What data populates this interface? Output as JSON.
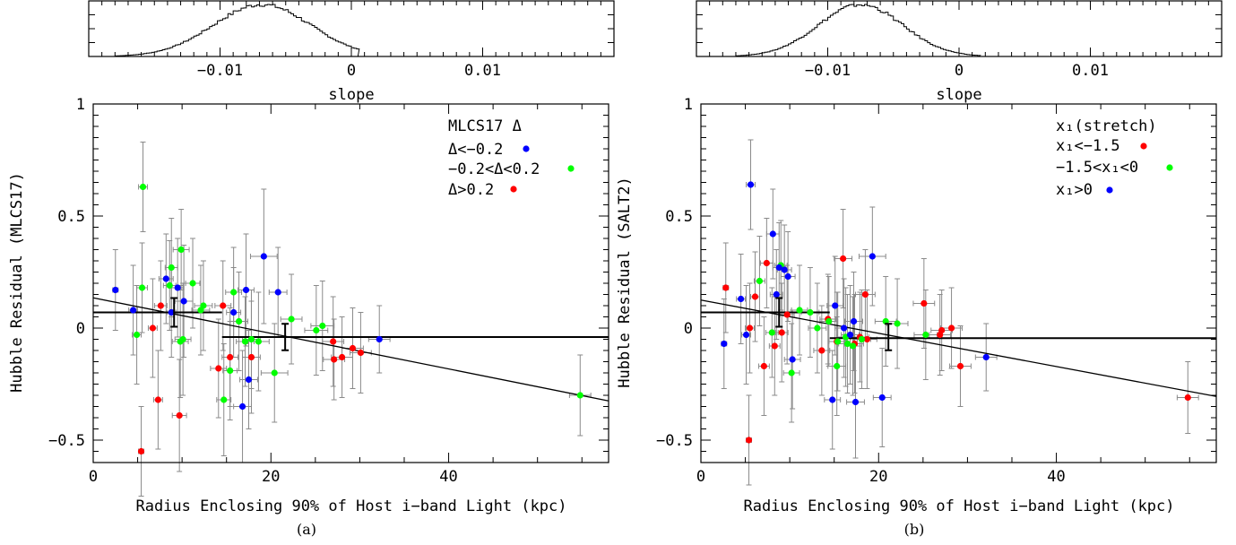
{
  "chart_data": [
    {
      "type": "scatter",
      "panel_caption": "(a)",
      "xlabel": "Radius Enclosing 90% of Host i−band Light (kpc)",
      "ylabel": "Hubble Residual (MLCS17)",
      "xlim": [
        0,
        58
      ],
      "ylim": [
        -0.6,
        1
      ],
      "xticks": [
        {
          "v": 0,
          "label": "0"
        },
        {
          "v": 20,
          "label": "20"
        },
        {
          "v": 40,
          "label": "40"
        }
      ],
      "yticks": [
        {
          "v": -0.5,
          "label": "−0.5"
        },
        {
          "v": 0,
          "label": "0"
        },
        {
          "v": 0.5,
          "label": "0.5"
        },
        {
          "v": 1,
          "label": "1"
        }
      ],
      "legend_placement": "top-right",
      "legend_title": "MLCS17 Δ",
      "series": [
        {
          "name": "Δ<−0.2",
          "color": "#0000ff",
          "points": [
            [
              2.5,
              0.17
            ],
            [
              4.5,
              0.08
            ],
            [
              8.2,
              0.22
            ],
            [
              9.5,
              0.18
            ],
            [
              10.2,
              0.12
            ],
            [
              15.8,
              0.07
            ],
            [
              16.8,
              -0.35
            ],
            [
              17.2,
              0.17
            ],
            [
              17.5,
              -0.23
            ],
            [
              19.2,
              0.32
            ],
            [
              20.8,
              0.16
            ],
            [
              32.2,
              -0.05
            ],
            [
              8.8,
              0.07
            ]
          ],
          "xerr": [
            0.3,
            0.5,
            0.8,
            0.7,
            1.0,
            0.8,
            1.0,
            0.9,
            1.0,
            1.5,
            1.0,
            1.2,
            0.5
          ],
          "yerr": [
            0.18,
            0.2,
            0.2,
            0.22,
            0.25,
            0.2,
            0.25,
            0.25,
            0.22,
            0.3,
            0.2,
            0.15,
            0.2
          ]
        },
        {
          "name": "−0.2<Δ<0.2",
          "color": "#00ff00",
          "points": [
            [
              5.6,
              0.63
            ],
            [
              5.5,
              0.18
            ],
            [
              4.9,
              -0.03
            ],
            [
              8.8,
              0.27
            ],
            [
              8.6,
              0.19
            ],
            [
              9.9,
              0.35
            ],
            [
              10.1,
              -0.05
            ],
            [
              9.8,
              -0.06
            ],
            [
              11.2,
              0.2
            ],
            [
              12.4,
              0.1
            ],
            [
              12.1,
              0.08
            ],
            [
              14.7,
              -0.32
            ],
            [
              15.4,
              -0.19
            ],
            [
              15.8,
              0.16
            ],
            [
              16.4,
              0.03
            ],
            [
              17.1,
              -0.06
            ],
            [
              17.8,
              -0.05
            ],
            [
              18.6,
              -0.06
            ],
            [
              20.4,
              -0.2
            ],
            [
              22.3,
              0.04
            ],
            [
              25.1,
              -0.01
            ],
            [
              25.8,
              0.01
            ],
            [
              54.8,
              -0.3
            ]
          ],
          "xerr": [
            0.5,
            0.6,
            0.5,
            0.7,
            0.7,
            0.9,
            0.9,
            0.9,
            0.8,
            1.0,
            1.0,
            0.8,
            0.8,
            0.9,
            1.0,
            1.0,
            1.0,
            1.2,
            1.5,
            1.2,
            1.3,
            1.3,
            1.2
          ],
          "yerr": [
            0.2,
            0.2,
            0.22,
            0.22,
            0.2,
            0.18,
            0.25,
            0.25,
            0.2,
            0.2,
            0.2,
            0.25,
            0.22,
            0.2,
            0.22,
            0.2,
            0.22,
            0.22,
            0.22,
            0.2,
            0.2,
            0.2,
            0.18
          ]
        },
        {
          "name": "Δ>0.2",
          "color": "#ff0000",
          "points": [
            [
              5.4,
              -0.55
            ],
            [
              6.7,
              0.0
            ],
            [
              7.3,
              -0.32
            ],
            [
              7.6,
              0.1
            ],
            [
              9.7,
              -0.39
            ],
            [
              14.1,
              -0.18
            ],
            [
              14.6,
              0.1
            ],
            [
              15.4,
              -0.13
            ],
            [
              17.8,
              -0.13
            ],
            [
              27.1,
              -0.14
            ],
            [
              27.0,
              -0.06
            ],
            [
              28.0,
              -0.13
            ],
            [
              29.2,
              -0.09
            ],
            [
              30.1,
              -0.11
            ]
          ],
          "xerr": [
            0.3,
            0.5,
            0.5,
            0.7,
            0.8,
            0.9,
            0.9,
            0.9,
            1.0,
            1.2,
            1.2,
            1.2,
            1.2,
            1.2
          ],
          "yerr": [
            0.2,
            0.22,
            0.22,
            0.2,
            0.25,
            0.22,
            0.2,
            0.22,
            0.25,
            0.18,
            0.2,
            0.18,
            0.18,
            0.18
          ]
        }
      ],
      "binned": [
        {
          "x": 9.1,
          "y": 0.07,
          "xerr": 0.0,
          "yerr": 0.04
        },
        {
          "x": 21.6,
          "y": -0.04,
          "xerr": 0.0,
          "yerr": 0.035
        }
      ],
      "steps": [
        {
          "x0": 0,
          "x1": 14.5,
          "y": 0.07
        },
        {
          "x0": 14.5,
          "x1": 58,
          "y": -0.04
        }
      ],
      "fit_line": {
        "x0": 0,
        "y0": 0.135,
        "x1": 58,
        "y1": -0.325
      },
      "inset": {
        "xlabel": "slope",
        "xlim": [
          -0.02,
          0.02
        ],
        "xticks": [
          {
            "v": -0.01,
            "label": "−0.01"
          },
          {
            "v": 0,
            "label": "0"
          },
          {
            "v": 0.01,
            "label": "0.01"
          }
        ],
        "mean": -0.0068,
        "sigma": 0.0037,
        "lo": -0.018,
        "hi": 0.0005
      }
    },
    {
      "type": "scatter",
      "panel_caption": "(b)",
      "xlabel": "Radius Enclosing 90% of Host i−band Light (kpc)",
      "ylabel": "Hubble Residual (SALT2)",
      "xlim": [
        0,
        58
      ],
      "ylim": [
        -0.6,
        1
      ],
      "xticks": [
        {
          "v": 0,
          "label": "0"
        },
        {
          "v": 20,
          "label": "20"
        },
        {
          "v": 40,
          "label": "40"
        }
      ],
      "yticks": [
        {
          "v": -0.5,
          "label": "−0.5"
        },
        {
          "v": 0,
          "label": "0"
        },
        {
          "v": 0.5,
          "label": "0.5"
        },
        {
          "v": 1,
          "label": "1"
        }
      ],
      "legend_placement": "top-right",
      "legend_title": "x₁(stretch)",
      "series": [
        {
          "name": "x₁<−1.5",
          "color": "#ff0000",
          "points": [
            [
              2.8,
              0.18
            ],
            [
              5.5,
              0.0
            ],
            [
              6.1,
              0.14
            ],
            [
              5.4,
              -0.5
            ],
            [
              7.1,
              -0.17
            ],
            [
              7.4,
              0.29
            ],
            [
              8.3,
              -0.08
            ],
            [
              9.1,
              -0.02
            ],
            [
              9.7,
              0.06
            ],
            [
              13.6,
              -0.1
            ],
            [
              14.3,
              0.04
            ],
            [
              15.3,
              -0.06
            ],
            [
              16.0,
              0.31
            ],
            [
              17.3,
              -0.07
            ],
            [
              17.9,
              -0.04
            ],
            [
              18.5,
              0.15
            ],
            [
              18.7,
              -0.05
            ],
            [
              25.1,
              0.11
            ],
            [
              26.9,
              -0.03
            ],
            [
              27.1,
              -0.01
            ],
            [
              28.2,
              0.0
            ],
            [
              29.2,
              -0.17
            ],
            [
              54.8,
              -0.31
            ]
          ],
          "xerr": [
            0.3,
            0.5,
            0.5,
            0.3,
            0.6,
            0.7,
            0.6,
            0.7,
            0.8,
            0.9,
            0.9,
            0.9,
            1.0,
            1.0,
            1.0,
            1.1,
            1.1,
            1.2,
            1.2,
            1.2,
            1.2,
            1.2,
            1.2
          ],
          "yerr": [
            0.2,
            0.2,
            0.2,
            0.2,
            0.22,
            0.2,
            0.22,
            0.22,
            0.22,
            0.2,
            0.2,
            0.22,
            0.22,
            0.22,
            0.2,
            0.2,
            0.22,
            0.2,
            0.18,
            0.18,
            0.18,
            0.18,
            0.16
          ]
        },
        {
          "name": "−1.5<x₁<0",
          "color": "#00ff00",
          "points": [
            [
              6.6,
              0.21
            ],
            [
              8.0,
              -0.02
            ],
            [
              9.0,
              0.28
            ],
            [
              10.2,
              -0.2
            ],
            [
              11.1,
              0.08
            ],
            [
              12.3,
              0.07
            ],
            [
              13.1,
              0.0
            ],
            [
              14.4,
              0.03
            ],
            [
              15.3,
              -0.17
            ],
            [
              15.4,
              -0.06
            ],
            [
              16.3,
              -0.04
            ],
            [
              16.5,
              -0.07
            ],
            [
              17.1,
              -0.08
            ],
            [
              18.1,
              -0.05
            ],
            [
              20.8,
              0.03
            ],
            [
              22.1,
              0.02
            ],
            [
              25.3,
              -0.03
            ]
          ],
          "xerr": [
            0.6,
            0.7,
            0.7,
            0.9,
            0.9,
            1.0,
            1.0,
            1.0,
            1.0,
            1.0,
            1.0,
            1.0,
            1.0,
            1.0,
            1.2,
            1.2,
            1.3
          ],
          "yerr": [
            0.2,
            0.2,
            0.2,
            0.22,
            0.2,
            0.2,
            0.2,
            0.2,
            0.22,
            0.22,
            0.22,
            0.22,
            0.22,
            0.22,
            0.2,
            0.2,
            0.2
          ]
        },
        {
          "name": "x₁>0",
          "color": "#0000ff",
          "points": [
            [
              2.6,
              -0.07
            ],
            [
              4.5,
              0.13
            ],
            [
              5.1,
              -0.03
            ],
            [
              5.6,
              0.64
            ],
            [
              8.1,
              0.42
            ],
            [
              8.5,
              0.15
            ],
            [
              8.8,
              0.27
            ],
            [
              9.4,
              0.26
            ],
            [
              9.8,
              0.23
            ],
            [
              10.3,
              -0.14
            ],
            [
              14.8,
              -0.32
            ],
            [
              15.1,
              0.1
            ],
            [
              16.1,
              0.0
            ],
            [
              16.8,
              -0.03
            ],
            [
              17.2,
              0.03
            ],
            [
              17.4,
              -0.33
            ],
            [
              19.3,
              0.32
            ],
            [
              20.4,
              -0.31
            ],
            [
              32.1,
              -0.13
            ]
          ],
          "xerr": [
            0.3,
            0.5,
            0.5,
            0.5,
            0.7,
            0.7,
            0.7,
            0.8,
            0.8,
            0.9,
            0.9,
            0.9,
            1.0,
            1.0,
            1.0,
            1.0,
            1.5,
            1.0,
            1.2
          ],
          "yerr": [
            0.2,
            0.2,
            0.22,
            0.2,
            0.2,
            0.2,
            0.2,
            0.2,
            0.2,
            0.22,
            0.22,
            0.22,
            0.22,
            0.22,
            0.22,
            0.25,
            0.22,
            0.22,
            0.15
          ]
        }
      ],
      "binned": [
        {
          "x": 8.8,
          "y": 0.07,
          "xerr": 0.0,
          "yerr": 0.04
        },
        {
          "x": 21.1,
          "y": -0.04,
          "xerr": 0.0,
          "yerr": 0.035
        }
      ],
      "steps": [
        {
          "x0": 0,
          "x1": 14.5,
          "y": 0.07
        },
        {
          "x0": 14.5,
          "x1": 58,
          "y": -0.045
        }
      ],
      "fit_line": {
        "x0": 0,
        "y0": 0.125,
        "x1": 58,
        "y1": -0.305
      },
      "inset": {
        "xlabel": "slope",
        "xlim": [
          -0.02,
          0.02
        ],
        "xticks": [
          {
            "v": -0.01,
            "label": "−0.01"
          },
          {
            "v": 0,
            "label": "0"
          },
          {
            "v": 0.01,
            "label": "0.01"
          }
        ],
        "mean": -0.0075,
        "sigma": 0.0032,
        "lo": -0.017,
        "hi": 0.0015
      }
    }
  ]
}
